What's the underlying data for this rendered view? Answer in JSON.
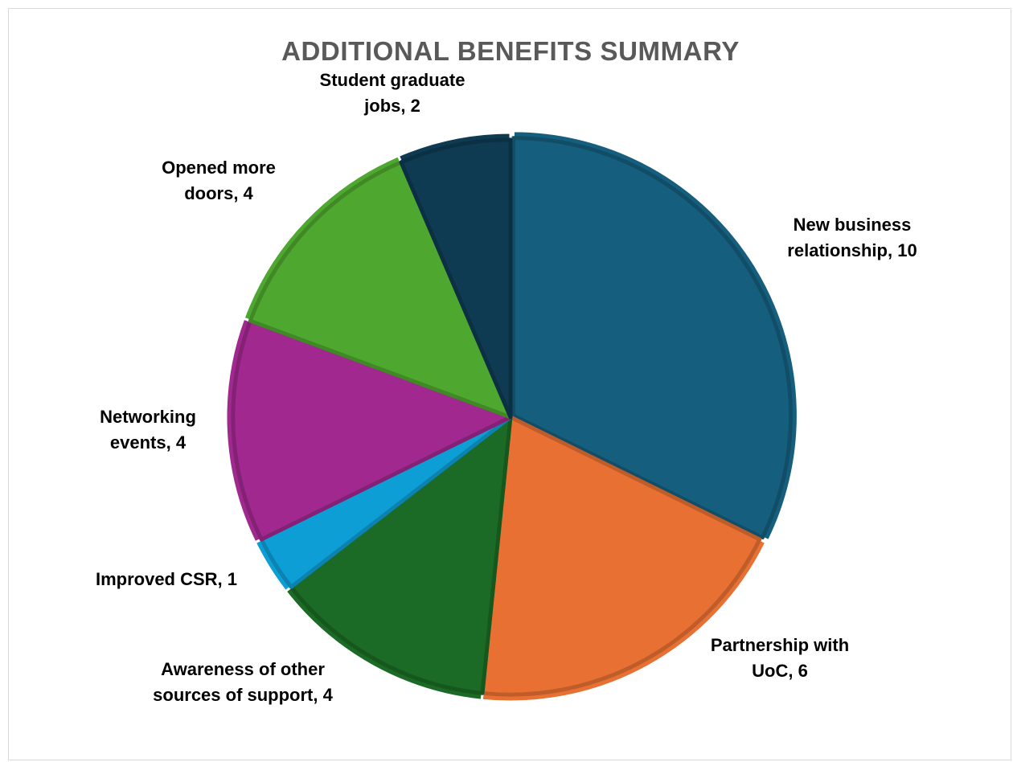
{
  "chart_data": {
    "type": "pie",
    "title": "ADDITIONAL BENEFITS SUMMARY",
    "slices": [
      {
        "name": "New business relationship",
        "value": 10,
        "label_lines": [
          "New business",
          "relationship, 10"
        ],
        "color": "#165E7E"
      },
      {
        "name": "Partnership with UoC",
        "value": 6,
        "label_lines": [
          "Partnership with",
          "UoC, 6"
        ],
        "color": "#E87033"
      },
      {
        "name": "Awareness of other sources of support",
        "value": 4,
        "label_lines": [
          "Awareness of other",
          "sources of support, 4"
        ],
        "color": "#1B6A25"
      },
      {
        "name": "Improved CSR",
        "value": 1,
        "label_lines": [
          "Improved CSR, 1"
        ],
        "color": "#0E9ED6"
      },
      {
        "name": "Networking events",
        "value": 4,
        "label_lines": [
          "Networking",
          "events, 4"
        ],
        "color": "#A0288F"
      },
      {
        "name": "Opened more doors",
        "value": 4,
        "label_lines": [
          "Opened more",
          "doors, 4"
        ],
        "color": "#4EA72E"
      },
      {
        "name": "Student graduate jobs",
        "value": 2,
        "label_lines": [
          "Student graduate",
          "jobs, 2"
        ],
        "color": "#0E3A52"
      }
    ],
    "start_angle_deg": 0,
    "direction": "clockwise",
    "legend": "none",
    "data_labels": "category name and value, outside end"
  }
}
